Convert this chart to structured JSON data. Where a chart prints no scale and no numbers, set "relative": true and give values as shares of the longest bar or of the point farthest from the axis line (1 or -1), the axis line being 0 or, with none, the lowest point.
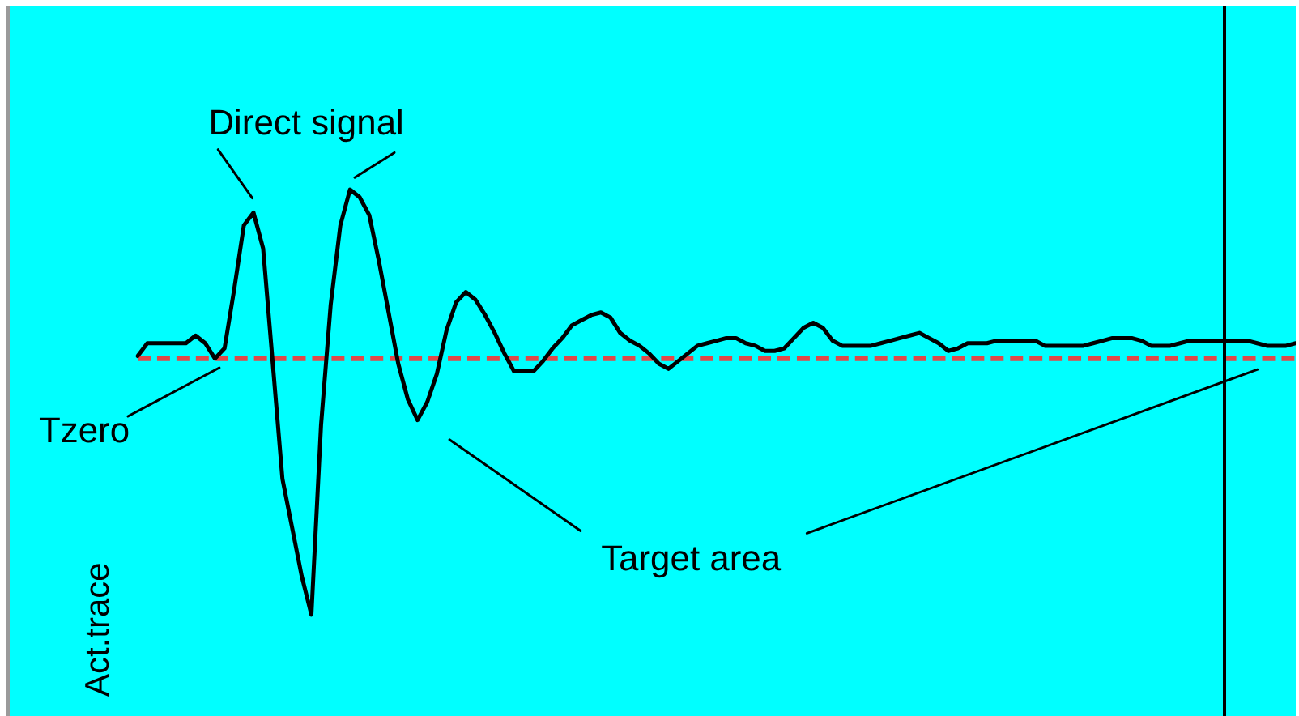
{
  "chart_data": {
    "type": "line",
    "relative": true,
    "ylabel": "Act.trace",
    "tick_labels": false,
    "marker": "none",
    "categories": [
      null,
      null,
      null,
      null,
      null,
      null,
      null,
      null,
      null,
      null,
      null,
      null,
      null,
      null,
      null,
      null,
      null,
      null,
      null,
      null,
      null,
      null,
      null,
      null,
      null,
      null,
      null,
      null,
      null,
      null,
      null,
      null,
      null,
      null,
      null,
      null,
      null,
      null,
      null,
      null,
      null,
      null,
      null,
      null,
      null,
      null,
      null,
      null,
      null,
      null,
      null,
      null,
      null,
      null,
      null,
      null,
      null,
      null,
      null,
      null,
      null,
      null,
      null,
      null,
      null,
      null,
      null,
      null,
      null,
      null,
      null,
      null,
      null,
      null,
      null,
      null,
      null,
      null,
      null,
      null,
      null,
      null,
      null,
      null,
      null,
      null,
      null,
      null,
      null,
      null,
      null,
      null,
      null,
      null,
      null,
      null,
      null,
      null,
      null,
      null,
      null,
      null,
      null,
      null,
      null,
      null,
      null,
      null,
      null,
      null,
      null,
      null,
      null,
      null,
      null,
      null,
      null,
      null,
      null,
      null,
      null
    ],
    "series": [
      {
        "color": "#000000",
        "values": [
          0.01,
          0.06,
          0.06,
          0.06,
          0.06,
          0.06,
          0.09,
          0.06,
          0,
          0.04,
          0.27,
          0.52,
          0.57,
          0.43,
          -0.02,
          -0.47,
          -0.66,
          -0.85,
          -1,
          -0.26,
          0.21,
          0.52,
          0.66,
          0.63,
          0.56,
          0.38,
          0.18,
          -0.02,
          -0.16,
          -0.24,
          -0.17,
          -0.06,
          0.11,
          0.22,
          0.26,
          0.23,
          0.17,
          0.1,
          0.02,
          -0.05,
          -0.05,
          -0.05,
          -0.01,
          0.04,
          0.08,
          0.13,
          0.15,
          0.17,
          0.18,
          0.16,
          0.1,
          0.07,
          0.05,
          0.02,
          -0.02,
          -0.04,
          -0.01,
          0.02,
          0.05,
          0.06,
          0.07,
          0.08,
          0.08,
          0.06,
          0.05,
          0.03,
          0.03,
          0.04,
          0.08,
          0.12,
          0.14,
          0.12,
          0.07,
          0.05,
          0.05,
          0.05,
          0.05,
          0.06,
          0.07,
          0.08,
          0.09,
          0.1,
          0.08,
          0.06,
          0.03,
          0.04,
          0.06,
          0.06,
          0.06,
          0.07,
          0.07,
          0.07,
          0.07,
          0.07,
          0.05,
          0.05,
          0.05,
          0.05,
          0.05,
          0.06,
          0.07,
          0.08,
          0.08,
          0.08,
          0.07,
          0.05,
          0.05,
          0.05,
          0.06,
          0.07,
          0.07,
          0.07,
          0.07,
          0.07,
          0.07,
          0.07,
          0.06,
          0.05,
          0.05,
          0.05,
          0.06
        ]
      }
    ],
    "ref_lines": [
      {
        "axis": "y",
        "value": 0,
        "color": "#e04848",
        "line_style": "dashed"
      }
    ],
    "annotations": [
      "Direct signal",
      "Tzero",
      "Target area"
    ]
  }
}
